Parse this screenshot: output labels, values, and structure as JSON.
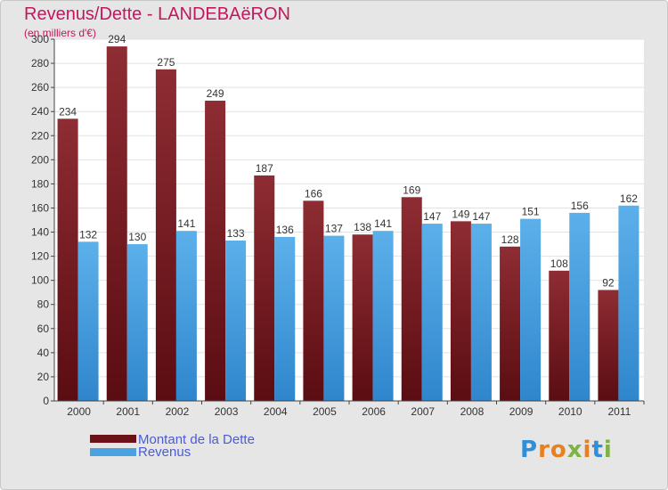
{
  "header": {
    "title": "Revenus/Dette - LANDEBAëRON",
    "subtitle": "(en milliers d'€)"
  },
  "legend": {
    "items": [
      {
        "label": "Montant de la Dette",
        "color": "#6b1218"
      },
      {
        "label": "Revenus",
        "color": "#4aa3e0"
      }
    ]
  },
  "logo": {
    "text": "Proxiti",
    "letters": [
      "P",
      "r",
      "o",
      "x",
      "i",
      "t",
      "i"
    ],
    "colors": [
      "#2f8fd8",
      "#e8801f",
      "#e8801f",
      "#7cb342",
      "#e8801f",
      "#2f8fd8",
      "#7cb342"
    ]
  },
  "chart_data": {
    "type": "bar",
    "categories": [
      "2000",
      "2001",
      "2002",
      "2003",
      "2004",
      "2005",
      "2006",
      "2007",
      "2008",
      "2009",
      "2010",
      "2011"
    ],
    "series": [
      {
        "name": "Montant de la Dette",
        "values": [
          234,
          294,
          275,
          249,
          187,
          166,
          138,
          169,
          149,
          128,
          108,
          92
        ],
        "color": "#7a1e24"
      },
      {
        "name": "Revenus",
        "values": [
          132,
          130,
          141,
          133,
          136,
          137,
          141,
          147,
          147,
          151,
          156,
          162
        ],
        "color": "#4aa3e0"
      }
    ],
    "ylim": [
      0,
      300
    ],
    "yticks": [
      0,
      20,
      40,
      60,
      80,
      100,
      120,
      140,
      160,
      180,
      200,
      220,
      240,
      260,
      280,
      300
    ],
    "grid": true,
    "legend_position": "bottom-left"
  }
}
